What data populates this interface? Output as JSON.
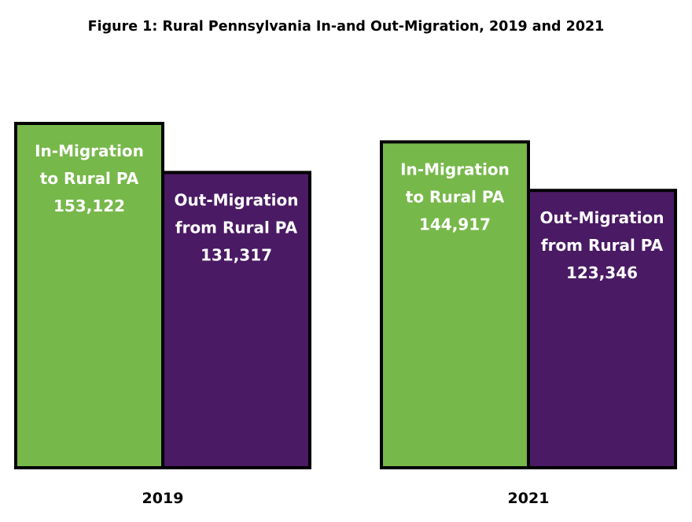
{
  "chart_data": {
    "type": "bar",
    "title": "Figure 1: Rural Pennsylvania In-and Out-Migration, 2019 and 2021",
    "categories": [
      "2019",
      "2021"
    ],
    "series": [
      {
        "name": "In-Migration to Rural PA",
        "label_lines": [
          "In-Migration",
          "to Rural PA"
        ],
        "values": [
          153122,
          144917
        ],
        "value_labels": [
          "153,122",
          "144,917"
        ],
        "color": "#77b84a"
      },
      {
        "name": "Out-Migration from Rural PA",
        "label_lines": [
          "Out-Migration",
          "from Rural PA"
        ],
        "values": [
          131317,
          123346
        ],
        "value_labels": [
          "131,317",
          "123,346"
        ],
        "color": "#4a1a64"
      }
    ],
    "xlabel": "",
    "ylabel": "",
    "ylim": [
      0,
      153122
    ],
    "grid": false,
    "legend": "none"
  }
}
